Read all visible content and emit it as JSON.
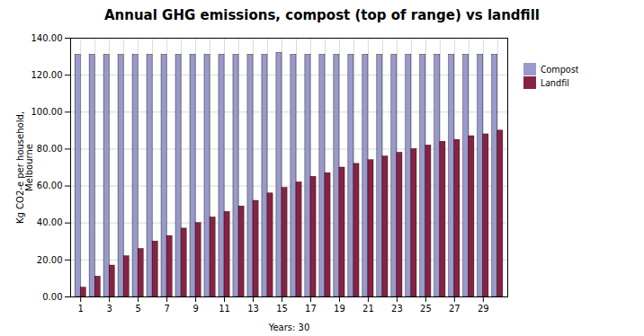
{
  "chart_data": {
    "type": "bar",
    "title": "Annual GHG emissions, compost (top of range) vs landfill",
    "xlabel": "Years: 30",
    "ylabel": "Kg CO2-e per household,\nMelbourne",
    "x": [
      1,
      2,
      3,
      4,
      5,
      6,
      7,
      8,
      9,
      10,
      11,
      12,
      13,
      14,
      15,
      16,
      17,
      18,
      19,
      20,
      21,
      22,
      23,
      24,
      25,
      26,
      27,
      28,
      29,
      30
    ],
    "series": [
      {
        "name": "Compost",
        "color": "#9999cc",
        "values": [
          131,
          131,
          131,
          131,
          131,
          131,
          131,
          131,
          131,
          131,
          131,
          131,
          131,
          131,
          132,
          131,
          131,
          131,
          131,
          131,
          131,
          131,
          131,
          131,
          131,
          131,
          131,
          131,
          131,
          131
        ]
      },
      {
        "name": "Landfil",
        "color": "#882244",
        "values": [
          5,
          11,
          17,
          22,
          26,
          30,
          33,
          37,
          40,
          43,
          46,
          49,
          52,
          56,
          59,
          62,
          65,
          67,
          70,
          72,
          74,
          76,
          78,
          80,
          82,
          84,
          85,
          87,
          88,
          90
        ]
      }
    ],
    "xlim": [
      0.3,
      30.7
    ],
    "xticks": [
      1,
      3,
      5,
      7,
      9,
      11,
      13,
      15,
      17,
      19,
      21,
      23,
      25,
      27,
      29
    ],
    "ylim": [
      0,
      140
    ],
    "yticks": [
      {
        "value": 0,
        "label": "0.00"
      },
      {
        "value": 20,
        "label": "20.00"
      },
      {
        "value": 40,
        "label": "40.00"
      },
      {
        "value": 60,
        "label": "60.00"
      },
      {
        "value": 80,
        "label": "80.00"
      },
      {
        "value": 100,
        "label": "100.00"
      },
      {
        "value": 120,
        "label": "120.00"
      },
      {
        "value": 140,
        "label": "140.00"
      }
    ],
    "grid": true,
    "legend": "right"
  }
}
